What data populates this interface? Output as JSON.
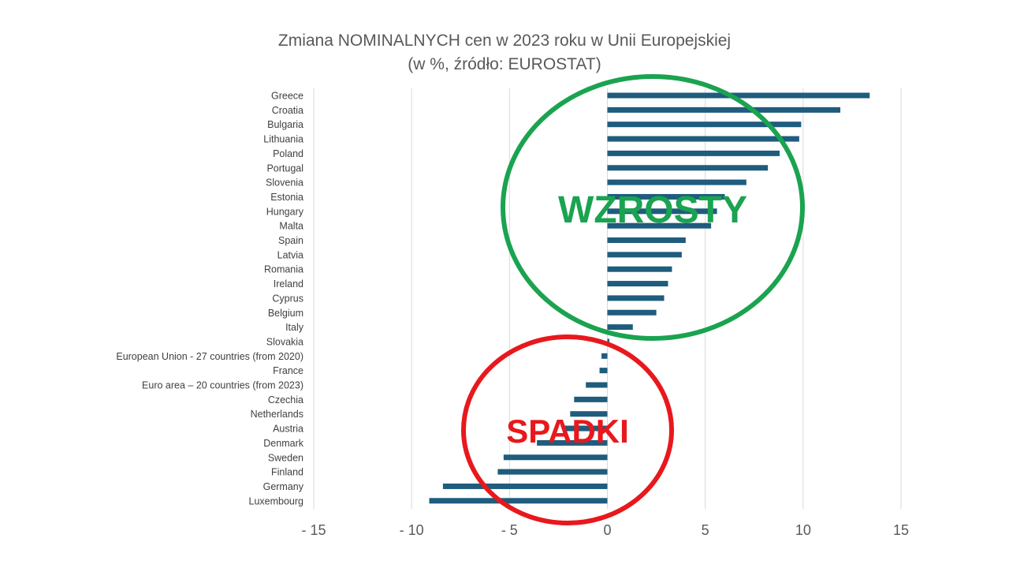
{
  "chart_data": {
    "type": "bar",
    "orientation": "horizontal",
    "title": "Zmiana NOMINALNYCH cen w 2023 roku w Unii Europejskiej",
    "subtitle": "(w %, źródło: EUROSTAT)",
    "xlim": [
      -15,
      15
    ],
    "x_ticks": [
      -15,
      -10,
      -5,
      0,
      5,
      10,
      15
    ],
    "x_tick_labels": [
      "- 15",
      "- 10",
      "- 5",
      "0",
      "5",
      "10",
      "15"
    ],
    "grid": "vertical",
    "categories": [
      "Greece",
      "Croatia",
      "Bulgaria",
      "Lithuania",
      "Poland",
      "Portugal",
      "Slovenia",
      "Estonia",
      "Hungary",
      "Malta",
      "Spain",
      "Latvia",
      "Romania",
      "Ireland",
      "Cyprus",
      "Belgium",
      "Italy",
      "Slovakia",
      "European Union - 27 countries (from 2020)",
      "France",
      "Euro area – 20 countries (from 2023)",
      "Czechia",
      "Netherlands",
      "Austria",
      "Denmark",
      "Sweden",
      "Finland",
      "Germany",
      "Luxembourg"
    ],
    "values": [
      13.4,
      11.9,
      9.9,
      9.8,
      8.8,
      8.2,
      7.1,
      6.0,
      5.6,
      5.3,
      4.0,
      3.8,
      3.3,
      3.1,
      2.9,
      2.5,
      1.3,
      0.1,
      -0.3,
      -0.4,
      -1.1,
      -1.7,
      -1.9,
      -2.2,
      -3.6,
      -5.3,
      -5.6,
      -8.4,
      -9.1
    ],
    "bar_color": "#1f5c7d",
    "annotations": [
      {
        "text": "WZROSTY",
        "color": "#1aa350",
        "ring_color": "#1aa350"
      },
      {
        "text": "SPADKI",
        "color": "#e8181c",
        "ring_color": "#e8181c"
      }
    ]
  }
}
